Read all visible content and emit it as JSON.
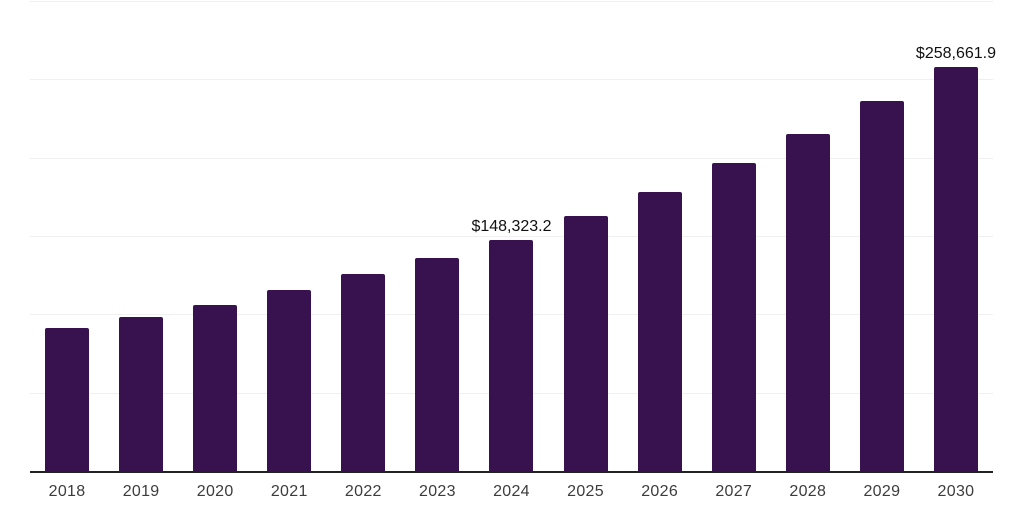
{
  "chart_data": {
    "type": "bar",
    "title": "",
    "xlabel": "",
    "ylabel": "",
    "categories": [
      "2018",
      "2019",
      "2020",
      "2021",
      "2022",
      "2023",
      "2024",
      "2025",
      "2026",
      "2027",
      "2028",
      "2029",
      "2030"
    ],
    "values": [
      91900,
      98900,
      106900,
      115900,
      126100,
      136600,
      148323.2,
      163700,
      178700,
      197200,
      215700,
      237100,
      258661.9
    ],
    "value_labels_visible": {
      "2024": "$148,323.2",
      "2030": "$258,661.9"
    },
    "ylim": [
      0,
      300000
    ],
    "gridline_step": 50000,
    "grid": true,
    "y_axis_tick_labels_visible": false,
    "legend": null,
    "colors": {
      "bg": "#ffffff",
      "bar": "#38124e",
      "axis": "#222222",
      "grid": "#f0f0f0",
      "tick": "#3c3c3c",
      "vlabel": "#111111"
    }
  }
}
